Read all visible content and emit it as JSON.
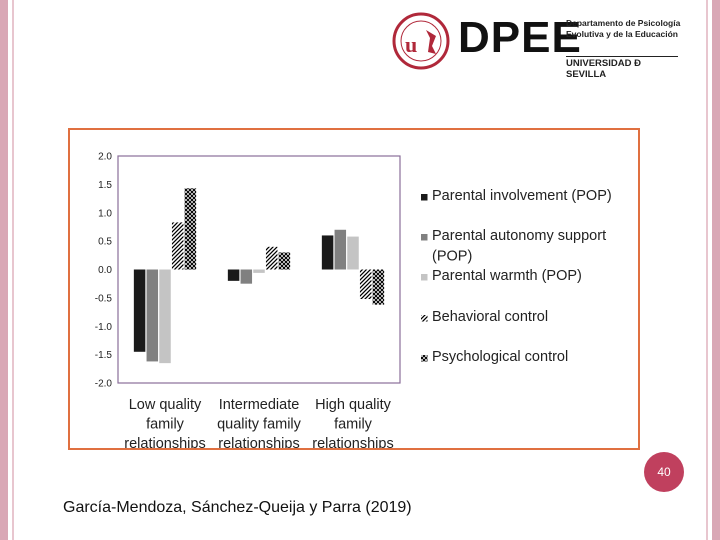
{
  "slide": {
    "logo_text": "DPEE",
    "logo_department": "Departamento de Psicología\nEvolutiva y de la Educación",
    "logo_university": "UNIVERSIDAD Ð SEVILLA",
    "page_number": "40",
    "citation": "García-Mendoza, Sánchez-Queija y Parra (2019)",
    "colors": {
      "frame": "#e07040",
      "badge": "#c0405e",
      "border": "#d9a7b5"
    }
  },
  "chart_data": {
    "type": "bar",
    "categories": [
      "Low quality family relationships",
      "Intermediate quality family relationships",
      "High quality family relationships"
    ],
    "category_lines": [
      [
        "Low quality",
        "family",
        "relationships"
      ],
      [
        "Intermediate",
        "quality family",
        "relationships"
      ],
      [
        "High quality",
        "family",
        "relationships"
      ]
    ],
    "series": [
      {
        "name": "Parental involvement (POP)",
        "values": [
          -1.45,
          -0.2,
          0.6
        ],
        "color": "#1a1a1a",
        "pattern": "solid"
      },
      {
        "name": "Parental autonomy support (POP)",
        "values": [
          -1.62,
          -0.25,
          0.7
        ],
        "color": "#808080",
        "pattern": "solid"
      },
      {
        "name": "Parental warmth (POP)",
        "values": [
          -1.65,
          -0.06,
          0.58
        ],
        "color": "#c4c4c4",
        "pattern": "solid"
      },
      {
        "name": "Behavioral control",
        "values": [
          0.83,
          0.4,
          -0.52
        ],
        "color": "#000000",
        "pattern": "diagonal"
      },
      {
        "name": "Psychological control",
        "values": [
          1.43,
          0.3,
          -0.62
        ],
        "color": "#000000",
        "pattern": "crosshatch"
      }
    ],
    "legend_lines": [
      [
        "Parental involvement (POP)"
      ],
      [
        "Parental autonomy support",
        "(POP)"
      ],
      [
        "Parental warmth (POP)"
      ],
      [
        "Behavioral control"
      ],
      [
        "Psychological control"
      ]
    ],
    "ylim": [
      -2.0,
      2.0
    ],
    "yticks": [
      2.0,
      1.5,
      1.0,
      0.5,
      0.0,
      -0.5,
      -1.0,
      -1.5,
      -2.0
    ],
    "ytick_labels": [
      "2.0",
      "1.5",
      "1.0",
      "0.5",
      "0.0",
      "-0.5",
      "-1.0",
      "-1.5",
      "-2.0"
    ],
    "title": "",
    "xlabel": "",
    "ylabel": "",
    "grid": false,
    "legend_position": "right"
  }
}
